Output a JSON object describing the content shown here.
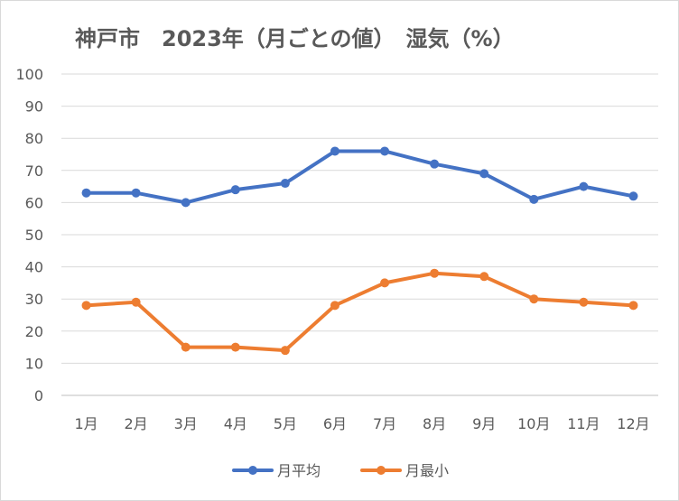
{
  "chart_data": {
    "type": "line",
    "title": "神戸市　2023年（月ごとの値）　湿気（%）",
    "xlabel": "",
    "ylabel": "",
    "categories": [
      "1月",
      "2月",
      "3月",
      "4月",
      "5月",
      "6月",
      "7月",
      "8月",
      "9月",
      "10月",
      "11月",
      "12月"
    ],
    "ylim": [
      0,
      100
    ],
    "yticks": [
      0,
      10,
      20,
      30,
      40,
      50,
      60,
      70,
      80,
      90,
      100
    ],
    "grid": true,
    "legend_position": "bottom",
    "series": [
      {
        "name": "月平均",
        "color": "#4472c4",
        "values": [
          63,
          63,
          60,
          64,
          66,
          76,
          76,
          72,
          69,
          61,
          65,
          62
        ]
      },
      {
        "name": "月最小",
        "color": "#ed7d31",
        "values": [
          28,
          29,
          15,
          15,
          14,
          28,
          35,
          38,
          37,
          30,
          29,
          28
        ]
      }
    ]
  }
}
